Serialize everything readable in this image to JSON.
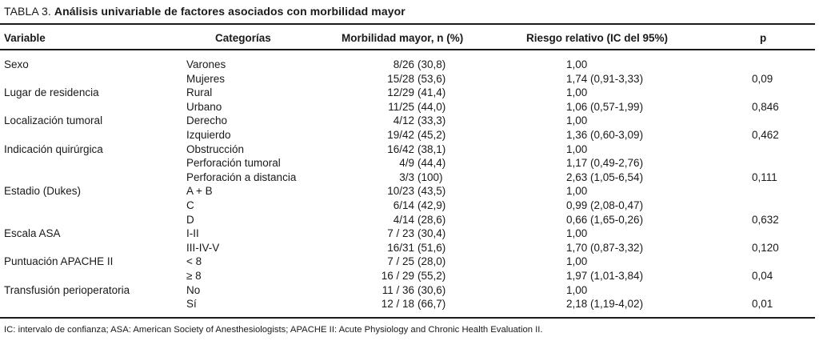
{
  "title": {
    "prefix": "TABLA 3. ",
    "caption": "Análisis univariable de factores asociados con morbilidad mayor"
  },
  "columns": [
    "Variable",
    "Categorías",
    "Morbilidad mayor, n (%)",
    "Riesgo relativo (IC del 95%)",
    "p"
  ],
  "rows": [
    {
      "variable": "Sexo",
      "categoria": "Varones",
      "frac": "8/26",
      "pct": "(30,8)",
      "riesgo": "1,00",
      "p": ""
    },
    {
      "variable": "",
      "categoria": "Mujeres",
      "frac": "15/28",
      "pct": "(53,6)",
      "riesgo": "1,74 (0,91-3,33)",
      "p": "0,09"
    },
    {
      "variable": "Lugar de residencia",
      "categoria": "Rural",
      "frac": "12/29",
      "pct": "(41,4)",
      "riesgo": "1,00",
      "p": ""
    },
    {
      "variable": "",
      "categoria": "Urbano",
      "frac": "11/25",
      "pct": "(44,0)",
      "riesgo": "1,06 (0,57-1,99)",
      "p": "0,846"
    },
    {
      "variable": "Localización tumoral",
      "categoria": "Derecho",
      "frac": "4/12",
      "pct": "(33,3)",
      "riesgo": "1,00",
      "p": ""
    },
    {
      "variable": "",
      "categoria": "Izquierdo",
      "frac": "19/42",
      "pct": "(45,2)",
      "riesgo": "1,36 (0,60-3,09)",
      "p": "0,462"
    },
    {
      "variable": "Indicación quirúrgica",
      "categoria": "Obstrucción",
      "frac": "16/42",
      "pct": "(38,1)",
      "riesgo": "1,00",
      "p": ""
    },
    {
      "variable": "",
      "categoria": "Perforación tumoral",
      "frac": "4/9",
      "pct": "(44,4)",
      "riesgo": "1,17 (0,49-2,76)",
      "p": ""
    },
    {
      "variable": "",
      "categoria": "Perforación a distancia",
      "frac": "3/3",
      "pct": "(100)",
      "riesgo": "2,63 (1,05-6,54)",
      "p": "0,111"
    },
    {
      "variable": "Estadio (Dukes)",
      "categoria": "A + B",
      "frac": "10/23",
      "pct": "(43,5)",
      "riesgo": "1,00",
      "p": ""
    },
    {
      "variable": "",
      "categoria": "C",
      "frac": "6/14",
      "pct": "(42,9)",
      "riesgo": "0,99 (2,08-0,47)",
      "p": ""
    },
    {
      "variable": "",
      "categoria": "D",
      "frac": "4/14",
      "pct": "(28,6)",
      "riesgo": "0,66 (1,65-0,26)",
      "p": "0,632"
    },
    {
      "variable": "Escala ASA",
      "categoria": "I-II",
      "frac": "7 / 23",
      "pct": "(30,4)",
      "riesgo": "1,00",
      "p": ""
    },
    {
      "variable": "",
      "categoria": "III-IV-V",
      "frac": "16/31",
      "pct": "(51,6)",
      "riesgo": "1,70 (0,87-3,32)",
      "p": "0,120"
    },
    {
      "variable": "Puntuación APACHE II",
      "categoria": "< 8",
      "frac": "7 / 25",
      "pct": "(28,0)",
      "riesgo": "1,00",
      "p": ""
    },
    {
      "variable": "",
      "categoria": "≥ 8",
      "frac": "16 / 29",
      "pct": "(55,2)",
      "riesgo": "1,97 (1,01-3,84)",
      "p": "0,04"
    },
    {
      "variable": "Transfusión perioperatoria",
      "categoria": "No",
      "frac": "11 / 36",
      "pct": "(30,6)",
      "riesgo": "1,00",
      "p": ""
    },
    {
      "variable": "",
      "categoria": "Sí",
      "frac": "12 / 18",
      "pct": "(66,7)",
      "riesgo": "2,18 (1,19-4,02)",
      "p": "0,01"
    }
  ],
  "footnote": "IC: intervalo de confianza; ASA: American Society of Anesthesiologists; APACHE II: Acute Physiology and Chronic Health Evaluation II.",
  "colors": {
    "background": "#ffffff",
    "text": "#1a1a1a",
    "rule": "#1a1a1a"
  }
}
